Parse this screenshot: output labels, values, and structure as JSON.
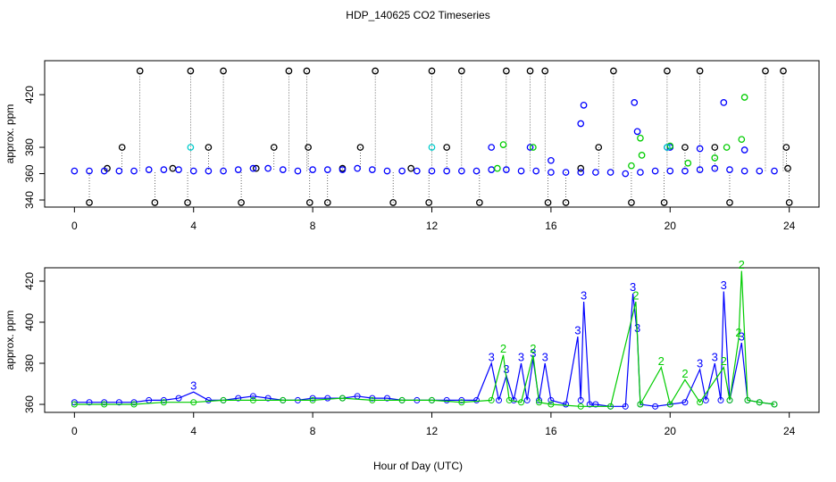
{
  "chart_data": [
    {
      "type": "scatter",
      "title": "HDP_140625  CO2 Timeseries",
      "ylabel": "approx. ppm",
      "xlim": [
        -1,
        25
      ],
      "xticks": [
        0,
        4,
        8,
        12,
        16,
        20,
        24
      ],
      "ylim": [
        334.6,
        445.8
      ],
      "yticks": [
        340,
        360,
        380,
        420
      ],
      "series": [
        {
          "color": "#000000",
          "x": [
            0.5,
            1.1,
            1.6,
            2.2,
            2.7,
            3.3,
            3.8,
            3.9,
            4.5,
            5.0,
            5.6,
            6.1,
            6.7,
            7.2,
            7.8,
            7.85,
            7.9,
            8.5,
            9.0,
            9.6,
            10.1,
            10.7,
            11.3,
            11.9,
            12.0,
            12.5,
            13.0,
            13.6,
            14.5,
            15.3,
            15.8,
            15.9,
            16.5,
            17.0,
            17.6,
            18.1,
            18.7,
            19.8,
            19.9,
            20.5,
            21.0,
            21.5,
            22.0,
            23.2,
            23.8,
            23.9,
            23.95,
            24.0
          ],
          "values": [
            338,
            364,
            380,
            438,
            338,
            364,
            338,
            438,
            380,
            438,
            338,
            364,
            380,
            438,
            438,
            380,
            338,
            338,
            364,
            380,
            438,
            338,
            364,
            338,
            438,
            380,
            438,
            338,
            438,
            438,
            438,
            338,
            338,
            364,
            380,
            438,
            338,
            338,
            438,
            380,
            438,
            380,
            338,
            438,
            438,
            380,
            364,
            338
          ]
        },
        {
          "color": "#0000ff",
          "x": [
            0,
            0.5,
            1,
            1.5,
            2,
            2.5,
            3,
            3.5,
            4,
            4.5,
            5,
            5.5,
            6,
            6.5,
            7,
            7.5,
            8,
            8.5,
            9,
            9.5,
            10,
            10.5,
            11,
            11.5,
            12,
            12.5,
            13,
            13.5,
            14,
            14.5,
            15,
            15.5,
            16,
            16.5,
            17,
            17.5,
            18,
            18.5,
            19,
            19.5,
            20,
            20.5,
            21,
            21.5,
            22,
            22.5,
            23,
            23.5,
            15.3,
            16.0,
            17.0,
            17.1,
            18.8,
            18.9,
            19.9,
            21.0,
            21.8,
            22.5,
            14.0,
            20.0
          ],
          "values": [
            362,
            362,
            362,
            362,
            362,
            363,
            363,
            363,
            362,
            362,
            362,
            363,
            364,
            364,
            363,
            362,
            363,
            363,
            363,
            364,
            363,
            362,
            362,
            362,
            362,
            362,
            362,
            362,
            363,
            363,
            362,
            362,
            361,
            361,
            361,
            361,
            361,
            360,
            361,
            362,
            362,
            362,
            363,
            364,
            363,
            362,
            362,
            362,
            380,
            370,
            398,
            412,
            414,
            392,
            380,
            379,
            414,
            378,
            380,
            380
          ]
        },
        {
          "color": "#00cc00",
          "x": [
            14.4,
            15.4,
            19.0,
            19.05,
            20.0,
            21.9,
            22.5,
            22.4,
            18.7,
            20.6,
            14.2,
            21.5
          ],
          "values": [
            382,
            380,
            387,
            374,
            381,
            380,
            418,
            386,
            366,
            368,
            364,
            372
          ]
        },
        {
          "color": "#00cccc",
          "x": [
            3.9,
            12.0,
            19.9
          ],
          "values": [
            380,
            380,
            380
          ]
        }
      ]
    },
    {
      "type": "line",
      "ylabel": "approx. ppm",
      "xlabel": "Hour of Day (UTC)",
      "xlim": [
        -1,
        25
      ],
      "xticks": [
        0,
        4,
        8,
        12,
        16,
        20,
        24
      ],
      "ylim": [
        356.1,
        426.5
      ],
      "yticks": [
        360,
        380,
        400,
        420
      ],
      "series": [
        {
          "color": "#0000ff",
          "symbol": "3",
          "x": [
            0,
            0.5,
            1,
            1.5,
            2,
            2.5,
            3,
            3.5,
            4,
            4.5,
            5,
            5.5,
            6,
            6.5,
            7,
            7.5,
            8,
            8.5,
            9,
            9.5,
            10,
            10.5,
            11,
            11.5,
            12,
            12.5,
            13,
            13.5,
            14.0,
            14.25,
            14.5,
            14.75,
            15.0,
            15.2,
            15.4,
            15.6,
            15.8,
            16.0,
            16.5,
            16.9,
            17.0,
            17.1,
            17.3,
            17.5,
            18,
            18.5,
            18.75,
            18.9,
            19.0,
            19.5,
            20,
            20.5,
            21.0,
            21.2,
            21.5,
            21.7,
            21.8,
            22.0,
            22.4,
            22.6,
            23,
            23.5
          ],
          "values": [
            361,
            361,
            361,
            361,
            361,
            362,
            362,
            363,
            366,
            362,
            362,
            363,
            364,
            363,
            362,
            362,
            363,
            363,
            363,
            364,
            363,
            363,
            362,
            362,
            362,
            362,
            362,
            362,
            380,
            362,
            374,
            362,
            380,
            362,
            382,
            362,
            380,
            362,
            360,
            393,
            362,
            410,
            360,
            360,
            359,
            359,
            414,
            394,
            360,
            359,
            360,
            361,
            377,
            362,
            380,
            362,
            415,
            362,
            390,
            362,
            361,
            360
          ]
        },
        {
          "color": "#00cc00",
          "symbol": "2",
          "x": [
            0,
            1,
            2,
            3,
            4,
            5,
            6,
            7,
            8,
            9,
            10,
            11,
            12,
            13,
            14,
            14.4,
            14.6,
            15,
            15.4,
            15.6,
            16,
            17,
            18,
            18.85,
            19,
            19.7,
            20,
            20.5,
            21,
            21.8,
            22,
            22.3,
            22.4,
            22.6,
            23,
            23.5
          ],
          "values": [
            360,
            360,
            360,
            361,
            361,
            362,
            362,
            362,
            362,
            363,
            362,
            362,
            362,
            361,
            362,
            384,
            362,
            361,
            384,
            361,
            360,
            359,
            359,
            410,
            360,
            378,
            360,
            372,
            361,
            378,
            362,
            392,
            425,
            362,
            361,
            360
          ]
        }
      ]
    }
  ]
}
